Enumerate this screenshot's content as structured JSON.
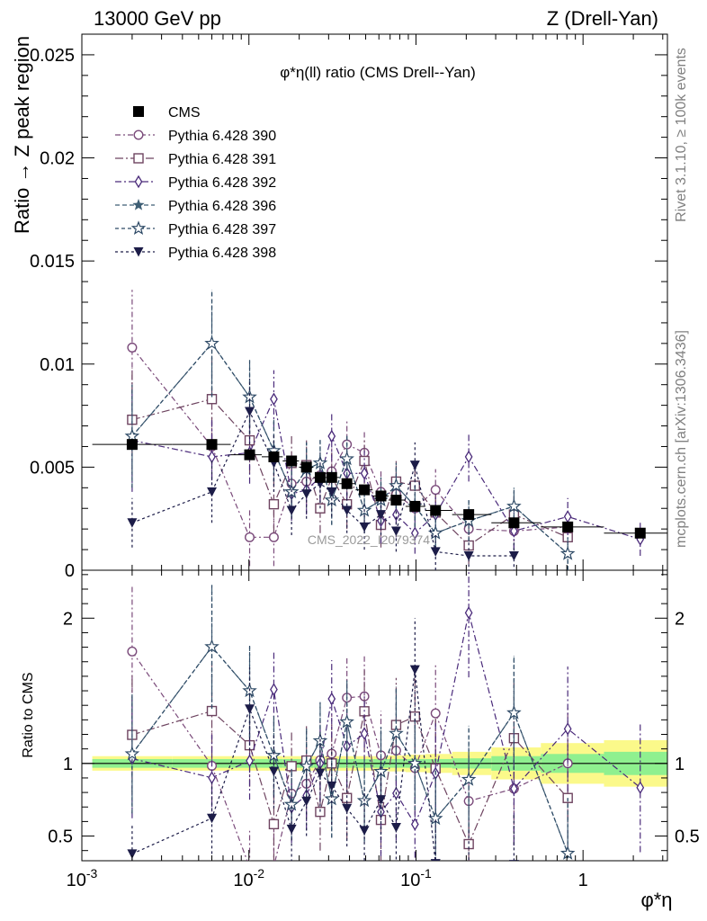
{
  "header": {
    "left": "13000 GeV pp",
    "right": "Z (Drell-Yan)"
  },
  "side_labels": {
    "rivet": "Rivet 3.1.10, ≥ 100k events",
    "mcplots": "mcplots.cern.ch [arXiv:1306.3436]"
  },
  "watermark": "CMS_2022_I2079374",
  "chart_data": {
    "type": "scatter",
    "title": "φ*η(ll) ratio (CMS Drell--Yan)",
    "ylabel": "Ratio → Z peak region",
    "ratio_ylabel": "Ratio to CMS",
    "xlabel": "φ*η",
    "x_scale": "log",
    "xlim": [
      0.001,
      3.2
    ],
    "ylim": [
      0,
      0.026
    ],
    "ratio_ylim": [
      0.33,
      2.33
    ],
    "x_ticks": [
      "10^-3",
      "10^-2",
      "10^-1",
      "1"
    ],
    "y_ticks": [
      "0",
      "0.005",
      "0.01",
      "0.015",
      "0.02",
      "0.025"
    ],
    "ratio_y_ticks": [
      "0.5",
      "1",
      "2"
    ],
    "legend_position": "top-left",
    "x": [
      0.002,
      0.006,
      0.0101,
      0.0141,
      0.018,
      0.0221,
      0.0267,
      0.0313,
      0.0386,
      0.0491,
      0.0617,
      0.0761,
      0.0986,
      0.131,
      0.207,
      0.386,
      0.81,
      2.2
    ],
    "cms": {
      "name": "CMS",
      "values": [
        0.0061,
        0.0061,
        0.0056,
        0.0055,
        0.0053,
        0.005,
        0.0045,
        0.0045,
        0.0042,
        0.0039,
        0.0036,
        0.0034,
        0.0031,
        0.0029,
        0.0027,
        0.0023,
        0.0021,
        0.0018
      ],
      "errors": [
        0.0001,
        0.0001,
        0.0001,
        0.0001,
        0.0001,
        0.0001,
        0.0001,
        0.0001,
        0.0001,
        0.0001,
        0.0001,
        0.0001,
        0.0001,
        0.0001,
        0.0001,
        0.0001,
        0.0001,
        0.0001
      ],
      "band_inner": [
        0.03,
        0.03,
        0.03,
        0.03,
        0.03,
        0.03,
        0.03,
        0.03,
        0.03,
        0.03,
        0.03,
        0.03,
        0.03,
        0.03,
        0.035,
        0.05,
        0.065,
        0.08
      ],
      "band_outer": [
        0.05,
        0.05,
        0.05,
        0.05,
        0.05,
        0.05,
        0.05,
        0.05,
        0.05,
        0.05,
        0.05,
        0.055,
        0.06,
        0.065,
        0.08,
        0.11,
        0.14,
        0.16
      ]
    },
    "series": [
      {
        "name": "Pythia 6.428 390",
        "marker": "circle-open",
        "color": "#7a4a7a",
        "dash": "6,3,2,3",
        "values": [
          0.0108,
          0.006,
          0.0016,
          0.0016,
          0.0042,
          0.0043,
          0.0046,
          0.0048,
          0.0061,
          0.0057,
          0.0038,
          0.0037,
          0.003,
          0.0039,
          0.002,
          0.0019,
          0.0021,
          null
        ],
        "errors": [
          0.0028,
          0.0015,
          0.0014,
          0.0014,
          0.0012,
          0.0012,
          0.0012,
          0.0012,
          0.0012,
          0.0011,
          0.0011,
          0.0011,
          0.001,
          0.001,
          0.0009,
          0.0009,
          0.0008,
          0
        ]
      },
      {
        "name": "Pythia 6.428 391",
        "marker": "square-open",
        "color": "#6e4460",
        "dash": "9,3,2,3",
        "values": [
          0.0073,
          0.0083,
          0.0063,
          0.0032,
          0.0052,
          0.0051,
          0.003,
          0.0045,
          0.0032,
          0.0053,
          0.0022,
          0.0043,
          0.0041,
          0.0028,
          0.0012,
          0.0027,
          0.0016,
          null
        ],
        "errors": [
          0.0025,
          0.002,
          0.0016,
          0.0014,
          0.0013,
          0.0012,
          0.0012,
          0.0012,
          0.0012,
          0.0011,
          0.0011,
          0.0011,
          0.001,
          0.001,
          0.0009,
          0.0009,
          0.0008,
          0
        ]
      },
      {
        "name": "Pythia 6.428 392",
        "marker": "diamond-open",
        "color": "#4a2a7a",
        "dash": "7,3,2,3",
        "values": [
          0.0063,
          0.0055,
          0.0057,
          0.0083,
          0.0037,
          0.0039,
          0.0045,
          0.0065,
          0.0047,
          0.0047,
          0.0024,
          0.0027,
          0.0018,
          0.0027,
          0.0055,
          0.0019,
          0.0026,
          0.0015
        ],
        "errors": [
          0.0025,
          0.0018,
          0.0015,
          0.0014,
          0.0013,
          0.0012,
          0.0012,
          0.0012,
          0.0012,
          0.0011,
          0.0011,
          0.0011,
          0.001,
          0.001,
          0.0012,
          0.0009,
          0.0009,
          0.0008
        ]
      },
      {
        "name": "Pythia 6.428 396",
        "marker": "star-filled",
        "color": "#3e5e74",
        "dash": "5,3",
        "values": [
          0.0065,
          0.011,
          0.0084,
          0.0058,
          0.0038,
          0.0049,
          0.0052,
          0.0034,
          0.0054,
          0.0029,
          0.0034,
          0.0041,
          0.0031,
          0.0018,
          0.0024,
          0.0031,
          0.0008,
          null
        ],
        "errors": [
          0.0025,
          0.0026,
          0.0018,
          0.0015,
          0.0013,
          0.0013,
          0.0012,
          0.0012,
          0.0012,
          0.0011,
          0.0011,
          0.0011,
          0.001,
          0.001,
          0.001,
          0.0009,
          0.0008,
          0
        ]
      },
      {
        "name": "Pythia 6.428 397",
        "marker": "star-open",
        "color": "#2e4a66",
        "dash": "4,3",
        "values": [
          0.0065,
          0.011,
          0.0084,
          0.0058,
          0.0038,
          0.0049,
          0.0052,
          0.0034,
          0.0054,
          0.0029,
          0.0034,
          0.0041,
          0.0031,
          0.0018,
          0.0024,
          0.0031,
          0.0008,
          null
        ],
        "errors": [
          0.0025,
          0.0026,
          0.0018,
          0.0015,
          0.0013,
          0.0013,
          0.0012,
          0.0012,
          0.0012,
          0.0011,
          0.0011,
          0.0011,
          0.001,
          0.001,
          0.001,
          0.0009,
          0.0008,
          0
        ]
      },
      {
        "name": "Pythia 6.428 398",
        "marker": "triangle-down-filled",
        "color": "#1c1c48",
        "dash": "3,3",
        "values": [
          0.0023,
          0.0038,
          0.0077,
          0.0052,
          0.0029,
          0.0037,
          0.0042,
          0.0038,
          0.0029,
          0.0021,
          0.0027,
          0.0019,
          0.0051,
          0.0009,
          0.0007,
          0.0007,
          null,
          null
        ],
        "errors": [
          0.0012,
          0.0015,
          0.0016,
          0.0014,
          0.0012,
          0.0012,
          0.0012,
          0.0012,
          0.0011,
          0.0011,
          0.001,
          0.001,
          0.0011,
          0.0009,
          0.0008,
          0.0008,
          0,
          0
        ]
      }
    ]
  }
}
